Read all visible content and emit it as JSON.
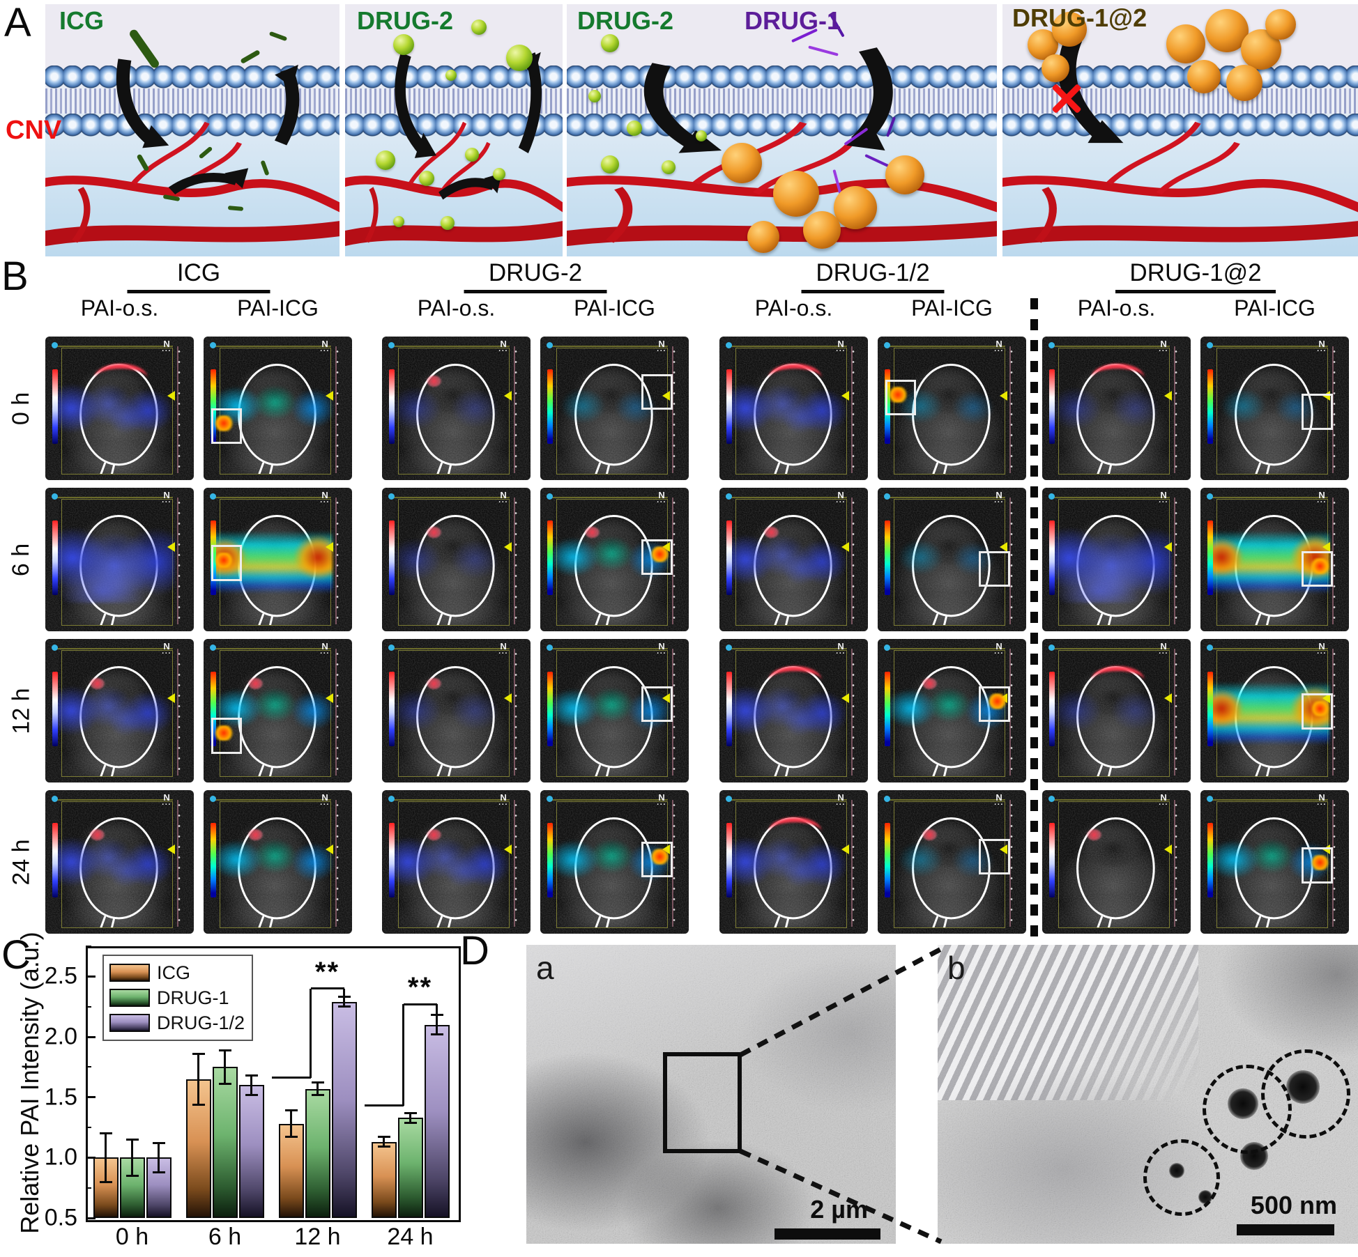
{
  "panel_a": {
    "label": "A",
    "cnv_label": "CNV",
    "titles": [
      {
        "text": "ICG",
        "color": "#157a2e"
      },
      {
        "text": "DRUG-2",
        "color": "#157a2e"
      },
      {
        "text": "DRUG-2",
        "color": "#157a2e"
      },
      {
        "text": "DRUG-1",
        "color": "#5c1d99"
      },
      {
        "text": "DRUG-1@2",
        "color": "#4f3d05"
      }
    ]
  },
  "panel_b": {
    "label": "B",
    "groups": [
      {
        "name": "ICG",
        "columns": [
          "PAI-o.s.",
          "PAI-ICG"
        ]
      },
      {
        "name": "DRUG-2",
        "columns": [
          "PAI-o.s.",
          "PAI-ICG"
        ]
      },
      {
        "name": "DRUG-1/2",
        "columns": [
          "PAI-o.s.",
          "PAI-ICG"
        ]
      },
      {
        "name": "DRUG-1@2",
        "columns": [
          "PAI-o.s.",
          "PAI-ICG"
        ]
      }
    ],
    "row_labels": [
      "0 h",
      "6 h",
      "12 h",
      "24 h"
    ],
    "cell_chrome": {
      "orientation_marker": "N",
      "orientation_dots": "···"
    },
    "cells": [
      [
        {
          "heat": "blue",
          "red": "arc",
          "roi": null,
          "roiY": 0,
          "hot": false
        },
        {
          "heat": "cyan",
          "red": null,
          "roi": "L",
          "roiY": 50,
          "hot": true
        },
        {
          "heat": "blue-low",
          "red": "spot",
          "roi": null,
          "roiY": 0,
          "hot": false
        },
        {
          "heat": "cyan-low",
          "red": null,
          "roi": "R",
          "roiY": 26,
          "hot": false
        },
        {
          "heat": "blue",
          "red": "arc",
          "roi": null,
          "roiY": 0,
          "hot": false
        },
        {
          "heat": "cyan-low",
          "red": null,
          "roi": "L",
          "roiY": 30,
          "hot": true
        },
        {
          "heat": "blue-low",
          "red": "arc",
          "roi": null,
          "roiY": 0,
          "hot": false
        },
        {
          "heat": "cyan-low",
          "red": null,
          "roi": "R",
          "roiY": 40,
          "hot": false
        }
      ],
      [
        {
          "heat": "blue-heavy",
          "red": null,
          "roi": null,
          "roiY": 0,
          "hot": false
        },
        {
          "heat": "rainbow",
          "red": null,
          "roi": "L",
          "roiY": 40,
          "hot": true
        },
        {
          "heat": "blue-low",
          "red": "spot",
          "roi": null,
          "roiY": 0,
          "hot": false
        },
        {
          "heat": "cyan",
          "red": "spot",
          "roi": "R",
          "roiY": 36,
          "hot": true
        },
        {
          "heat": "blue",
          "red": "spot",
          "roi": null,
          "roiY": 0,
          "hot": false
        },
        {
          "heat": "cyan-low",
          "red": null,
          "roi": "R",
          "roiY": 44,
          "hot": false
        },
        {
          "heat": "blue-heavy",
          "red": null,
          "roi": null,
          "roiY": 0,
          "hot": false
        },
        {
          "heat": "rainbow",
          "red": null,
          "roi": "R",
          "roiY": 44,
          "hot": true
        }
      ],
      [
        {
          "heat": "blue",
          "red": "spot",
          "roi": null,
          "roiY": 0,
          "hot": false
        },
        {
          "heat": "cyan",
          "red": "spot",
          "roi": "L",
          "roiY": 55,
          "hot": true
        },
        {
          "heat": "blue-low",
          "red": "spot",
          "roi": null,
          "roiY": 0,
          "hot": false
        },
        {
          "heat": "cyan",
          "red": null,
          "roi": "R",
          "roiY": 33,
          "hot": false
        },
        {
          "heat": "blue",
          "red": "arc",
          "roi": null,
          "roiY": 0,
          "hot": false
        },
        {
          "heat": "cyan",
          "red": "spot",
          "roi": "R",
          "roiY": 33,
          "hot": true
        },
        {
          "heat": "blue-low",
          "red": "arc",
          "roi": null,
          "roiY": 0,
          "hot": false
        },
        {
          "heat": "rainbow",
          "red": null,
          "roi": "R",
          "roiY": 38,
          "hot": true
        }
      ],
      [
        {
          "heat": "blue",
          "red": "spot",
          "roi": null,
          "roiY": 0,
          "hot": false
        },
        {
          "heat": "cyan",
          "red": "spot",
          "roi": null,
          "roiY": 0,
          "hot": false
        },
        {
          "heat": "blue",
          "red": "spot",
          "roi": null,
          "roiY": 0,
          "hot": false
        },
        {
          "heat": "cyan",
          "red": null,
          "roi": "R",
          "roiY": 36,
          "hot": true
        },
        {
          "heat": "blue",
          "red": "arc",
          "roi": null,
          "roiY": 0,
          "hot": false
        },
        {
          "heat": "cyan-low",
          "red": "spot",
          "roi": "R",
          "roiY": 34,
          "hot": false
        },
        {
          "heat": "none",
          "red": "spot",
          "roi": null,
          "roiY": 0,
          "hot": false
        },
        {
          "heat": "cyan",
          "red": null,
          "roi": "R",
          "roiY": 40,
          "hot": true
        }
      ]
    ]
  },
  "panel_c": {
    "label": "C"
  },
  "chart_data": {
    "type": "bar",
    "title": "",
    "categories": [
      "0 h",
      "6 h",
      "12 h",
      "24 h"
    ],
    "series": [
      {
        "name": "ICG",
        "color": "#e0a56e",
        "values": [
          1.0,
          1.65,
          1.28,
          1.13
        ],
        "errors": [
          0.2,
          0.21,
          0.11,
          0.04
        ]
      },
      {
        "name": "DRUG-1",
        "color": "#8cc98c",
        "values": [
          1.0,
          1.75,
          1.57,
          1.33
        ],
        "errors": [
          0.15,
          0.14,
          0.05,
          0.04
        ]
      },
      {
        "name": "DRUG-1/2",
        "color": "#b2a4d4",
        "values": [
          1.0,
          1.6,
          2.29,
          2.1
        ],
        "errors": [
          0.12,
          0.08,
          0.04,
          0.08
        ]
      }
    ],
    "xlabel": "",
    "ylabel": "Relative PAI Intensity (a.u.)",
    "ylim": [
      0.5,
      2.75
    ],
    "yticks": [
      0.5,
      1.0,
      1.5,
      2.0,
      2.5
    ],
    "grid": false,
    "legend_position": "top-left",
    "significance": [
      {
        "category": "12 h",
        "label": "**",
        "bar_from": "ICG",
        "bar_to": "DRUG-1/2",
        "y_low": 1.66,
        "y_bracket": 2.4
      },
      {
        "category": "24 h",
        "label": "**",
        "bar_from": "ICG",
        "bar_to": "DRUG-1/2",
        "y_low": 1.43,
        "y_bracket": 2.27
      }
    ]
  },
  "panel_d": {
    "label": "D",
    "images": [
      {
        "label": "a",
        "scale_bar_text": "2 µm"
      },
      {
        "label": "b",
        "scale_bar_text": "500 nm"
      }
    ]
  }
}
